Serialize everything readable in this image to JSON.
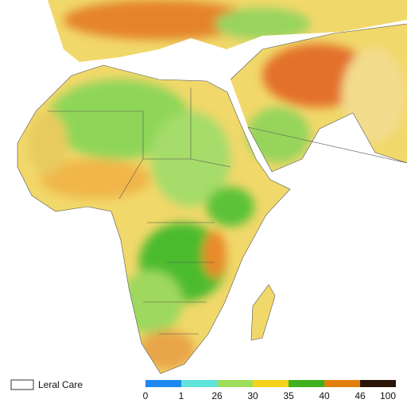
{
  "legend": {
    "label": "Leral Care"
  },
  "colorbar": {
    "ticks": [
      0,
      1,
      26,
      30,
      35,
      40,
      46,
      100
    ],
    "colors": [
      "#1e88f0",
      "#5fe3da",
      "#9ddf5a",
      "#f5d31c",
      "#3fb020",
      "#e2800e",
      "#2a1408"
    ]
  }
}
